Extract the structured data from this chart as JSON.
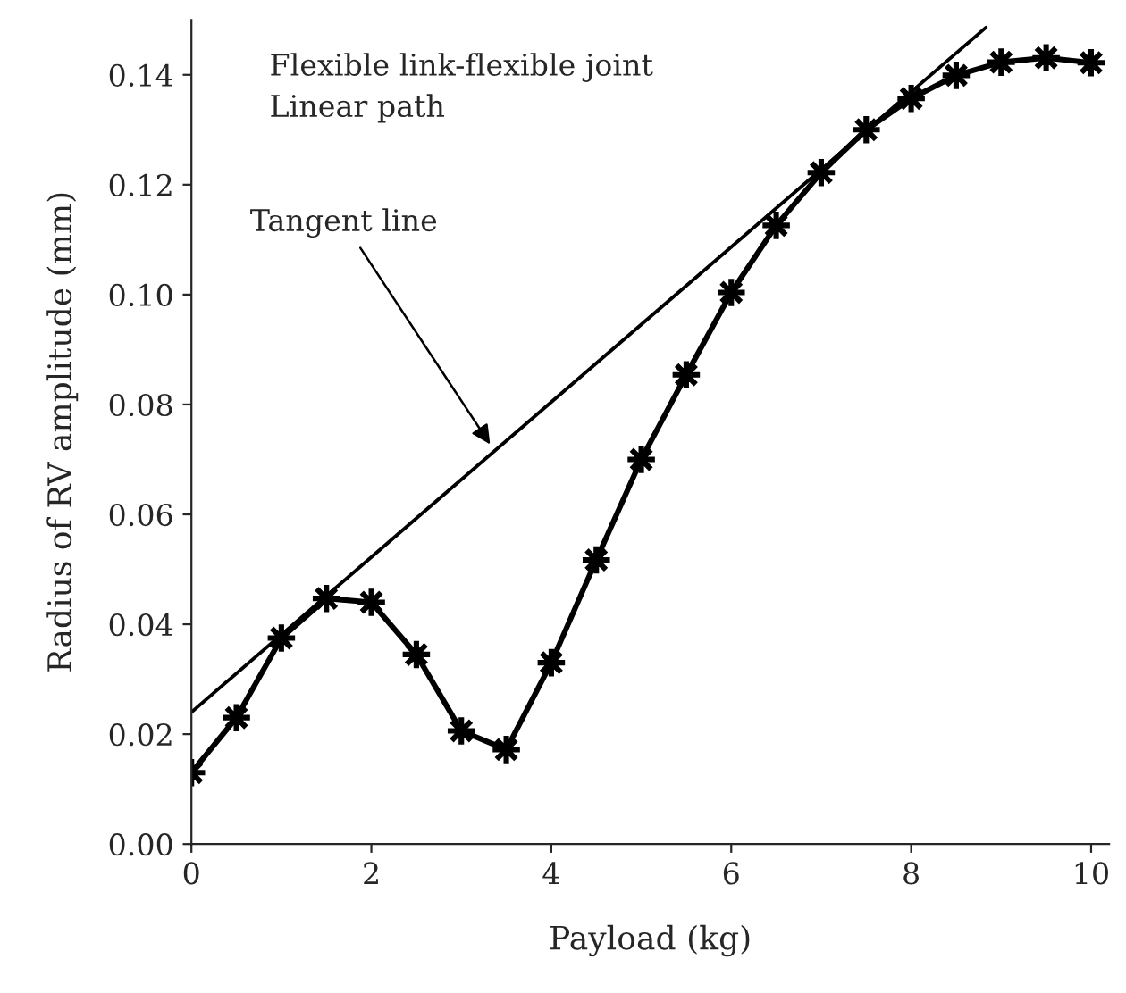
{
  "chart_data": {
    "type": "line",
    "xlabel": "Payload (kg)",
    "ylabel": "Radius of RV amplitude (mm)",
    "annotations": [
      "Flexible link-flexible joint",
      "Linear path",
      {
        "text": "Tangent line",
        "x": 3.35,
        "y": 0.072
      }
    ],
    "x": [
      0,
      0.5,
      1,
      1.5,
      2,
      2.5,
      3,
      3.5,
      4,
      4.5,
      5,
      5.5,
      6,
      6.5,
      7,
      7.5,
      8,
      8.5,
      9,
      9.5,
      10
    ],
    "series": [
      {
        "color": "#000000",
        "marker": "star",
        "values": [
          0.013,
          0.023,
          0.0375,
          0.0447,
          0.044,
          0.0345,
          0.0206,
          0.0172,
          0.033,
          0.0517,
          0.07,
          0.0854,
          0.1004,
          0.1126,
          0.1222,
          0.13,
          0.1357,
          0.1399,
          0.1423,
          0.1431,
          0.1422
        ]
      },
      {
        "color": "#000000",
        "marker": "none",
        "x": [
          0,
          8.83
        ],
        "values": [
          0.024,
          0.1486
        ]
      }
    ],
    "xlim": [
      0,
      10.2
    ],
    "xticks": [
      0,
      2,
      4,
      6,
      8,
      10
    ],
    "ylim": [
      0,
      0.15
    ],
    "yticks": [
      {
        "value": 0,
        "label": "0.00"
      },
      {
        "value": 0.02,
        "label": "0.02"
      },
      {
        "value": 0.04,
        "label": "0.04"
      },
      {
        "value": 0.06,
        "label": "0.06"
      },
      {
        "value": 0.08,
        "label": "0.08"
      },
      {
        "value": 0.1,
        "label": "0.10"
      },
      {
        "value": 0.12,
        "label": "0.12"
      },
      {
        "value": 0.14,
        "label": "0.14"
      }
    ],
    "grid": false
  }
}
